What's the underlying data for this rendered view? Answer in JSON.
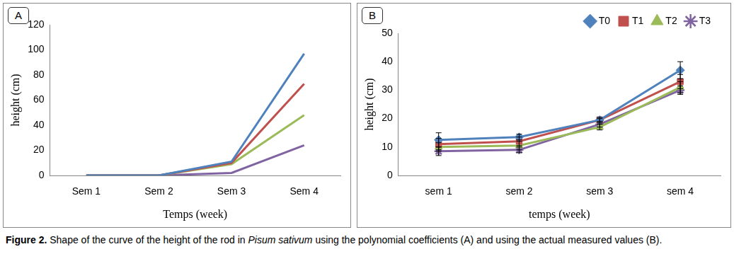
{
  "chart_data": [
    {
      "type": "line",
      "title": "A",
      "x_label": "Temps (week)",
      "y_label": "height (cm)",
      "categories": [
        "Sem 1",
        "Sem 2",
        "Sem 3",
        "Sem 4"
      ],
      "ylim": [
        0,
        120
      ],
      "yticks": [
        0,
        20,
        40,
        60,
        80,
        100,
        120
      ],
      "grid": false,
      "series": [
        {
          "color": "#4f81bd",
          "values": [
            0,
            0,
            11,
            97
          ]
        },
        {
          "color": "#c0504d",
          "values": [
            0,
            0,
            10,
            73
          ]
        },
        {
          "color": "#9bbb59",
          "values": [
            0,
            0,
            9,
            48
          ]
        },
        {
          "color": "#8064a2",
          "values": [
            0,
            0,
            2,
            24
          ]
        }
      ]
    },
    {
      "type": "line",
      "title": "B",
      "x_label": "temps (week)",
      "y_label": "height (cm)",
      "categories": [
        "sem 1",
        "sem 2",
        "sem 3",
        "sem 4"
      ],
      "ylim": [
        0,
        50
      ],
      "yticks": [
        0,
        10,
        20,
        30,
        40,
        50
      ],
      "grid": false,
      "legend": "top",
      "series": [
        {
          "name": "T0",
          "color": "#4f81bd",
          "marker": "diamond",
          "values": [
            12.5,
            13.5,
            19.5,
            37
          ],
          "errors": [
            2.5,
            1,
            0.5,
            3
          ]
        },
        {
          "name": "T1",
          "color": "#c0504d",
          "marker": "square",
          "values": [
            11,
            12,
            19.5,
            33
          ],
          "errors": [
            2,
            1.5,
            1,
            2.5
          ]
        },
        {
          "name": "T2",
          "color": "#9bbb59",
          "marker": "triangle",
          "values": [
            10,
            10.5,
            17,
            31
          ],
          "errors": [
            1.5,
            1.5,
            1,
            2
          ]
        },
        {
          "name": "T3",
          "color": "#8064a2",
          "marker": "star",
          "values": [
            8.5,
            9,
            18,
            30
          ],
          "errors": [
            1.5,
            1,
            1,
            1.5
          ]
        }
      ]
    }
  ],
  "caption": {
    "label": "Figure 2.",
    "parts": [
      {
        "text": "Shape of the curve of the height of the rod in"
      },
      {
        "text": "Pisum sativum",
        "italic": true
      },
      {
        "text": "using the polynomial coefficients (A) and using the actual measured values (B)."
      }
    ]
  }
}
